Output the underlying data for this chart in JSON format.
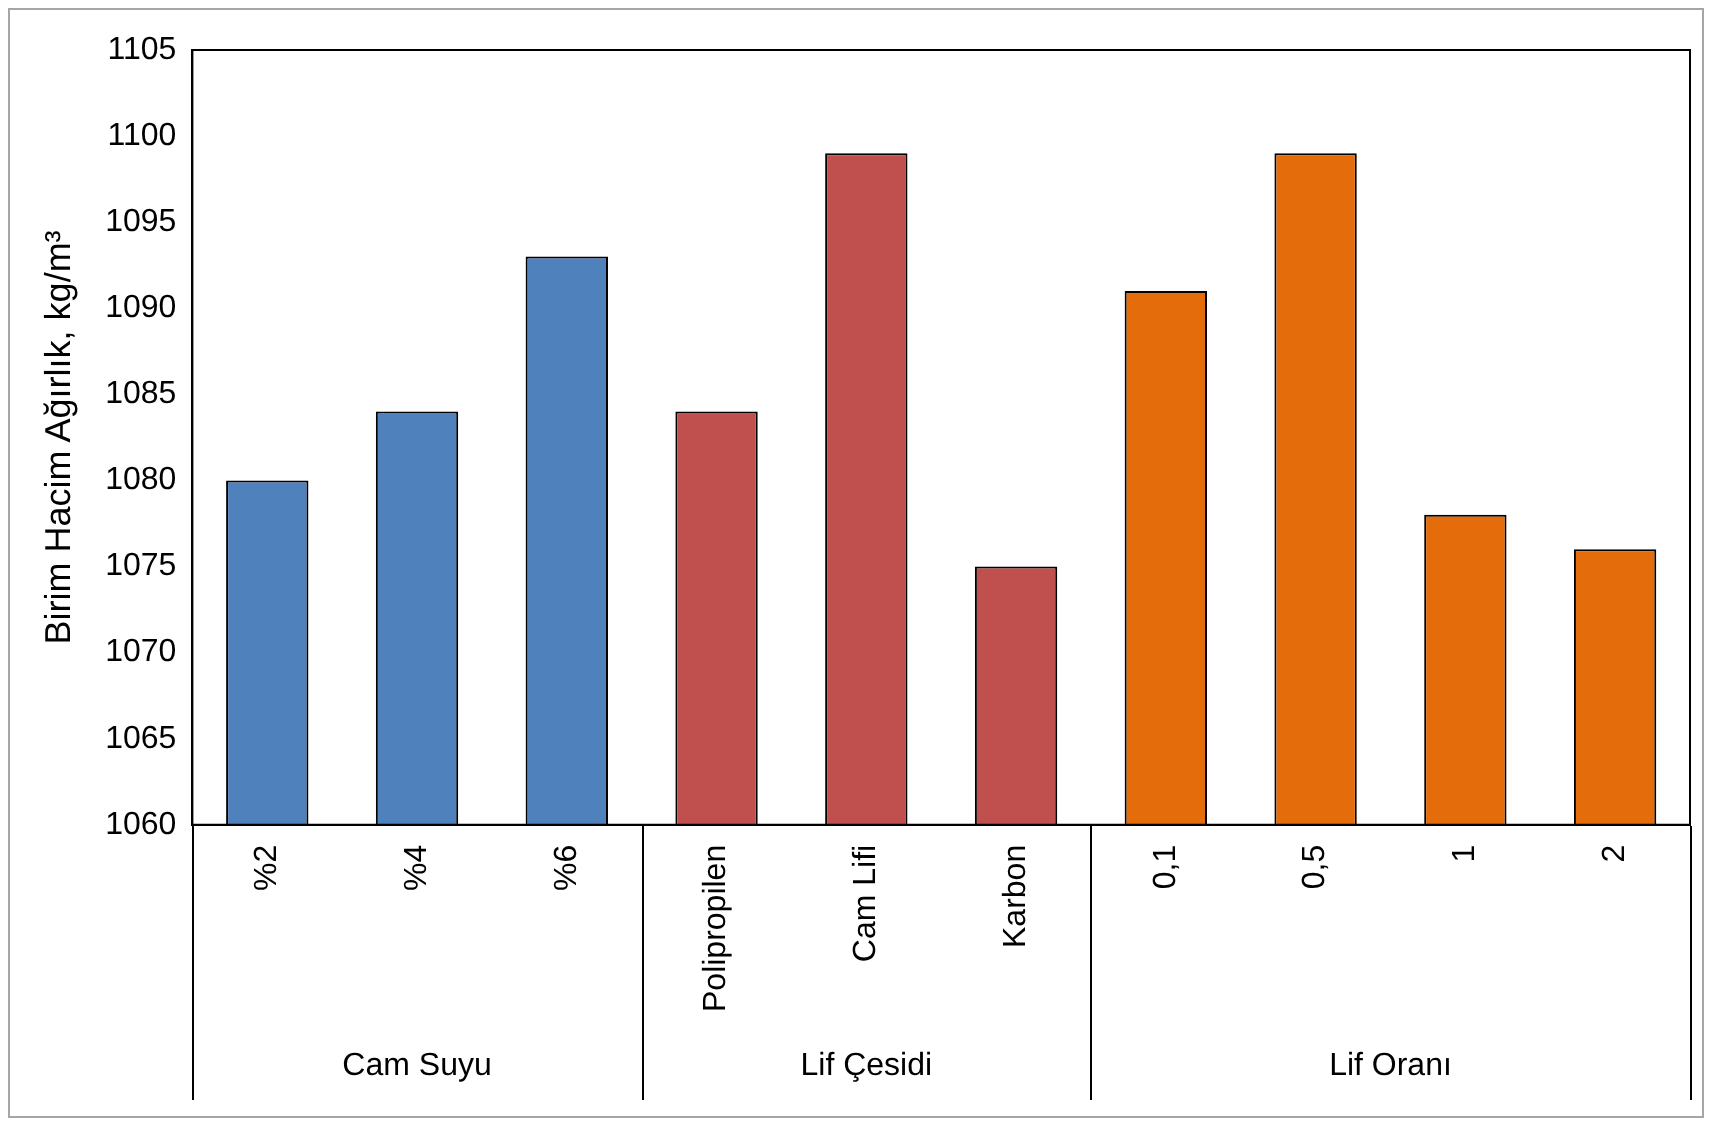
{
  "chart_data": {
    "type": "bar",
    "ylabel": "Birim Hacim Ağırlık, kg/m³",
    "categories": [
      "%2",
      "%4",
      "%6",
      "Polipropilen",
      "Cam Lifi",
      "Karbon",
      "0,1",
      "0,5",
      "1",
      "2"
    ],
    "series": [
      {
        "name": "Cam Suyu",
        "color": "#4f81bd",
        "values": [
          1080,
          1084,
          1093,
          null,
          null,
          null,
          null,
          null,
          null,
          null
        ]
      },
      {
        "name": "Lif Çesidi",
        "color": "#c0504d",
        "values": [
          null,
          null,
          null,
          1084,
          1099,
          1075,
          null,
          null,
          null,
          null
        ]
      },
      {
        "name": "Lif Oranı",
        "color": "#e46c0a",
        "values": [
          null,
          null,
          null,
          null,
          null,
          null,
          1091,
          1099,
          1078,
          1076
        ]
      }
    ],
    "ylim": [
      1060,
      1105
    ],
    "yticks": [
      1060,
      1065,
      1070,
      1075,
      1080,
      1085,
      1090,
      1095,
      1100,
      1105
    ],
    "grid": false,
    "legend": false
  }
}
